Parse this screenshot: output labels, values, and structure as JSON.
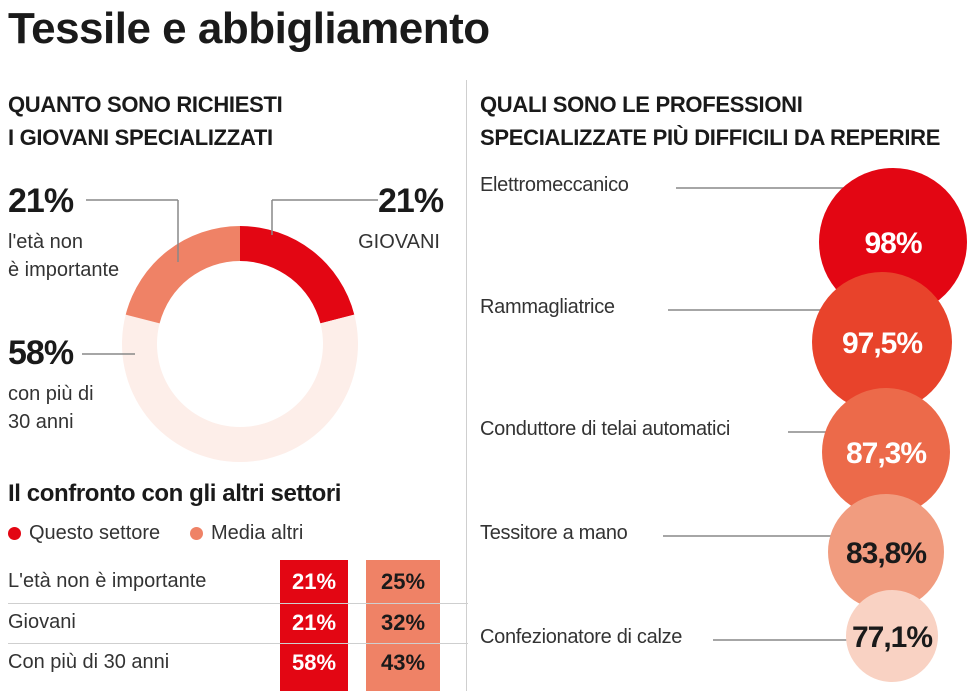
{
  "title": "Tessile e abbigliamento",
  "left_heading": [
    "QUANTO SONO RICHIESTI",
    "I GIOVANI SPECIALIZZATI"
  ],
  "right_heading": [
    "QUALI SONO LE PROFESSIONI",
    "SPECIALIZZATE PIÙ DIFFICILI DA REPERIRE"
  ],
  "donut": {
    "slices": [
      {
        "pct": "21%",
        "lines": [
          "GIOVANI"
        ],
        "color": "#e30613"
      },
      {
        "pct": "58%",
        "lines": [
          "con più di",
          "30 anni"
        ],
        "color": "#fdeee9"
      },
      {
        "pct": "21%",
        "lines": [
          "l'età non",
          "è importante"
        ],
        "color": "#ef8266"
      }
    ]
  },
  "comparison": {
    "title": "Il confronto con gli altri settori",
    "legend": [
      {
        "label": "Questo settore",
        "color": "#e30613"
      },
      {
        "label": "Media altri",
        "color": "#ef8266"
      }
    ],
    "rows": [
      {
        "label": "L'età non è importante",
        "this": "21%",
        "other": "25%"
      },
      {
        "label": "Giovani",
        "this": "21%",
        "other": "32%"
      },
      {
        "label": "Con più di 30 anni",
        "this": "58%",
        "other": "43%"
      }
    ]
  },
  "professions": [
    {
      "label": "Elettromeccanico",
      "value": "98%",
      "color": "#e30613",
      "text_color": "#ffffff"
    },
    {
      "label": "Rammagliatrice",
      "value": "97,5%",
      "color": "#e8432b",
      "text_color": "#ffffff"
    },
    {
      "label": "Conduttore di telai automatici",
      "value": "87,3%",
      "color": "#ec6a4a",
      "text_color": "#ffffff"
    },
    {
      "label": "Tessitore a mano",
      "value": "83,8%",
      "color": "#f19c7f",
      "text_color": "#1a1a1a"
    },
    {
      "label": "Confezionatore di calze",
      "value": "77,1%",
      "color": "#f9d2c3",
      "text_color": "#1a1a1a"
    }
  ],
  "chart_data": [
    {
      "type": "pie",
      "title": "QUANTO SONO RICHIESTI I GIOVANI SPECIALIZZATI",
      "categories": [
        "GIOVANI",
        "con più di 30 anni",
        "l'età non è importante"
      ],
      "values": [
        21,
        58,
        21
      ]
    },
    {
      "type": "table",
      "title": "Il confronto con gli altri settori",
      "categories": [
        "L'età non è importante",
        "Giovani",
        "Con più di 30 anni"
      ],
      "series": [
        {
          "name": "Questo settore",
          "values": [
            21,
            21,
            58
          ]
        },
        {
          "name": "Media altri",
          "values": [
            25,
            32,
            43
          ]
        }
      ]
    },
    {
      "type": "scatter",
      "title": "QUALI SONO LE PROFESSIONI SPECIALIZZATE PIÙ DIFFICILI DA REPERIRE",
      "categories": [
        "Elettromeccanico",
        "Rammagliatrice",
        "Conduttore di telai automatici",
        "Tessitore a mano",
        "Confezionatore di calze"
      ],
      "values": [
        98,
        97.5,
        87.3,
        83.8,
        77.1
      ]
    }
  ]
}
